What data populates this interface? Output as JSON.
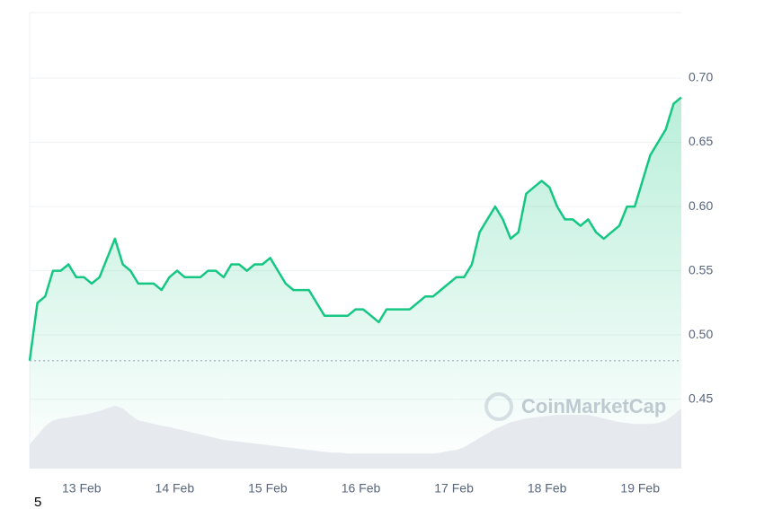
{
  "chart_data": {
    "type": "line",
    "watermark": "CoinMarketCap",
    "footnote": "5",
    "categories": [
      null,
      null,
      null,
      null,
      null,
      null,
      "13 Feb",
      null,
      null,
      null,
      null,
      null,
      null,
      null,
      null,
      null,
      null,
      null,
      "14 Feb",
      null,
      null,
      null,
      null,
      null,
      null,
      null,
      null,
      null,
      null,
      null,
      "15 Feb",
      null,
      null,
      null,
      null,
      null,
      null,
      null,
      null,
      null,
      null,
      null,
      "16 Feb",
      null,
      null,
      null,
      null,
      null,
      null,
      null,
      null,
      null,
      null,
      null,
      "17 Feb",
      null,
      null,
      null,
      null,
      null,
      null,
      null,
      null,
      null,
      null,
      null,
      "18 Feb",
      null,
      null,
      null,
      null,
      null,
      null,
      null,
      null,
      null,
      null,
      null,
      "19 Feb",
      null,
      null,
      null,
      null,
      null,
      null
    ],
    "series": [
      {
        "color": "#16c784",
        "values": [
          0.48,
          0.525,
          0.53,
          0.55,
          0.55,
          0.555,
          0.545,
          0.545,
          0.54,
          0.545,
          0.56,
          0.575,
          0.555,
          0.55,
          0.54,
          0.54,
          0.54,
          0.535,
          0.545,
          0.55,
          0.545,
          0.545,
          0.545,
          0.55,
          0.55,
          0.545,
          0.555,
          0.555,
          0.55,
          0.555,
          0.555,
          0.56,
          0.55,
          0.54,
          0.535,
          0.535,
          0.535,
          0.525,
          0.515,
          0.515,
          0.515,
          0.515,
          0.52,
          0.52,
          0.515,
          0.51,
          0.52,
          0.52,
          0.52,
          0.52,
          0.525,
          0.53,
          0.53,
          0.535,
          0.54,
          0.545,
          0.545,
          0.555,
          0.58,
          0.59,
          0.6,
          0.59,
          0.575,
          0.58,
          0.61,
          0.615,
          0.62,
          0.615,
          0.6,
          0.59,
          0.59,
          0.585,
          0.59,
          0.58,
          0.575,
          0.58,
          0.585,
          0.6,
          0.6,
          0.62,
          0.64,
          0.65,
          0.66,
          0.68,
          0.685
        ]
      },
      {
        "color": "#e6e9ed",
        "axis": "y2",
        "values": [
          5.3,
          7.3,
          9.3,
          10.6,
          11,
          11.2,
          11.6,
          11.8,
          12.2,
          12.6,
          13.2,
          13.8,
          13.2,
          11.8,
          10.6,
          10.2,
          9.8,
          9.4,
          9.1,
          8.7,
          8.3,
          7.9,
          7.5,
          7.1,
          6.7,
          6.3,
          6.1,
          5.9,
          5.7,
          5.5,
          5.3,
          5.1,
          4.9,
          4.7,
          4.5,
          4.3,
          4.1,
          3.9,
          3.7,
          3.5,
          3.5,
          3.3,
          3.3,
          3.3,
          3.3,
          3.3,
          3.3,
          3.3,
          3.3,
          3.3,
          3.3,
          3.3,
          3.3,
          3.5,
          3.9,
          4.1,
          4.7,
          5.7,
          6.7,
          7.7,
          8.7,
          9.4,
          10.2,
          10.6,
          11,
          11.2,
          11.4,
          11.6,
          11.8,
          11.8,
          11.8,
          11.8,
          11.8,
          11.4,
          11,
          10.6,
          10.2,
          10,
          9.8,
          9.8,
          9.8,
          10,
          10.6,
          11.8,
          13.2
        ]
      }
    ],
    "baseline": 0.48,
    "ylim": [
      0.396,
      0.751
    ],
    "yticks": [
      0.45,
      {
        "value": 0.5,
        "label": "0.50"
      },
      0.55,
      {
        "value": 0.6,
        "label": "0.60"
      },
      0.65,
      {
        "value": 0.7,
        "label": "0.70"
      }
    ],
    "y2lim": [
      0,
      100
    ],
    "grid": true
  }
}
